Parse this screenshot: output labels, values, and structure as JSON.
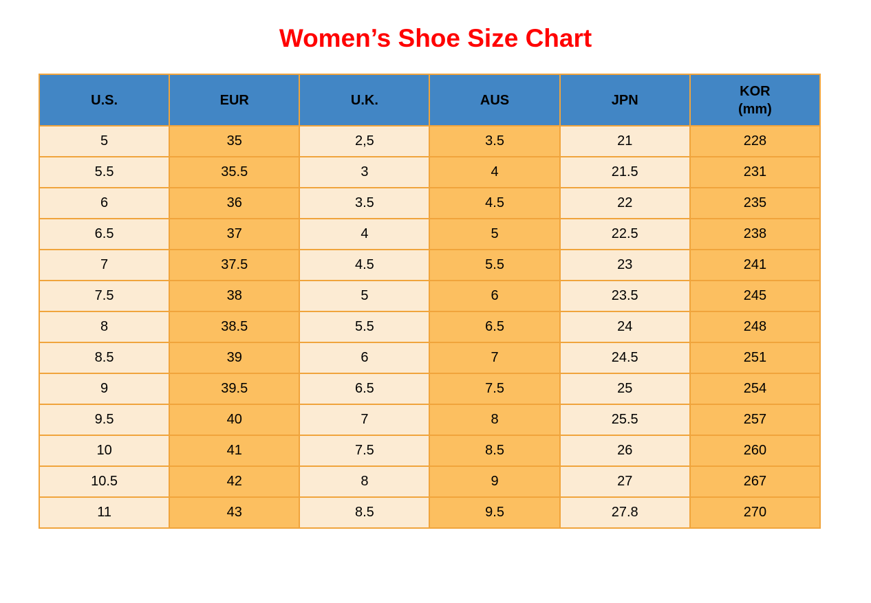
{
  "page": {
    "title": "Women’s Shoe Size Chart"
  },
  "colors": {
    "title": "#FF0000",
    "header_bg": "#4286C5",
    "cell_orange": "#FCBF60",
    "cell_cream": "#FCEBD3",
    "border": "#F0A43C",
    "text": "#000000"
  },
  "chart_data": {
    "type": "table",
    "title": "Women’s Shoe Size Chart",
    "columns": [
      "U.S.",
      "EUR",
      "U.K.",
      "AUS",
      "JPN",
      "KOR (mm)"
    ],
    "header_lines": [
      [
        "U.S."
      ],
      [
        "EUR"
      ],
      [
        "U.K."
      ],
      [
        "AUS"
      ],
      [
        "JPN"
      ],
      [
        "KOR",
        "(mm)"
      ]
    ],
    "column_styles": [
      "cream",
      "orange",
      "cream",
      "orange",
      "cream",
      "orange"
    ],
    "rows": [
      [
        "5",
        "35",
        "2,5",
        "3.5",
        "21",
        "228"
      ],
      [
        "5.5",
        "35.5",
        "3",
        "4",
        "21.5",
        "231"
      ],
      [
        "6",
        "36",
        "3.5",
        "4.5",
        "22",
        "235"
      ],
      [
        "6.5",
        "37",
        "4",
        "5",
        "22.5",
        "238"
      ],
      [
        "7",
        "37.5",
        "4.5",
        "5.5",
        "23",
        "241"
      ],
      [
        "7.5",
        "38",
        "5",
        "6",
        "23.5",
        "245"
      ],
      [
        "8",
        "38.5",
        "5.5",
        "6.5",
        "24",
        "248"
      ],
      [
        "8.5",
        "39",
        "6",
        "7",
        "24.5",
        "251"
      ],
      [
        "9",
        "39.5",
        "6.5",
        "7.5",
        "25",
        "254"
      ],
      [
        "9.5",
        "40",
        "7",
        "8",
        "25.5",
        "257"
      ],
      [
        "10",
        "41",
        "7.5",
        "8.5",
        "26",
        "260"
      ],
      [
        "10.5",
        "42",
        "8",
        "9",
        "27",
        "267"
      ],
      [
        "11",
        "43",
        "8.5",
        "9.5",
        "27.8",
        "270"
      ]
    ]
  }
}
